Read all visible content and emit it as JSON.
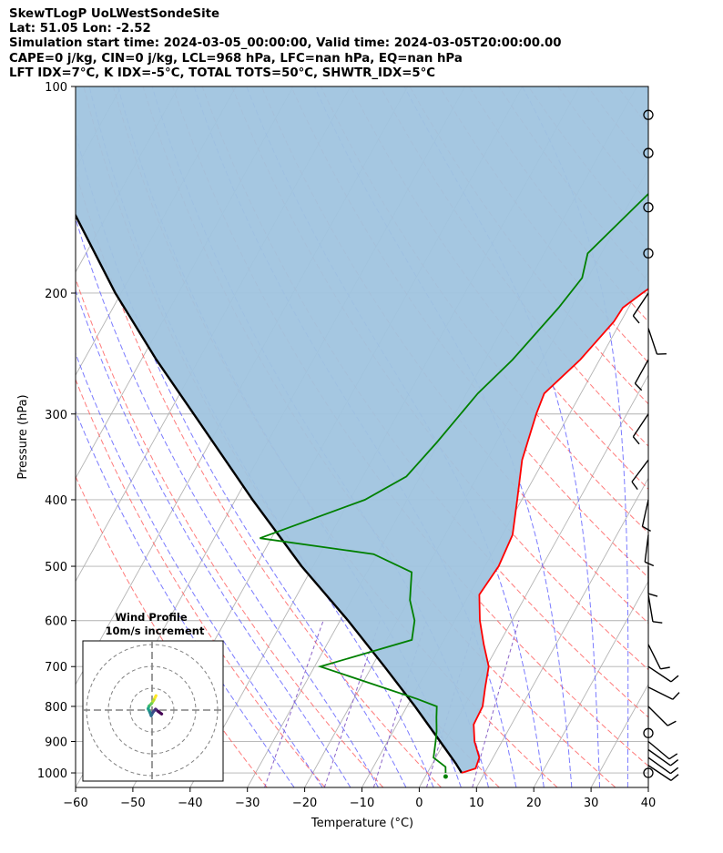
{
  "titles": [
    "SkewTLogP UoLWestSondeSite",
    "Lat: 51.05   Lon: -2.52",
    "Simulation start time: 2024-03-05_00:00:00, Valid time: 2024-03-05T20:00:00.00",
    "CAPE=0 j/kg, CIN=0 j/kg, LCL=968 hPa, LFC=nan hPa, EQ=nan hPa",
    "LFT IDX=7°C, K IDX=-5°C, TOTAL TOTS=50°C, SHWTR_IDX=5°C"
  ],
  "chart_data": {
    "type": "skew-t log-p",
    "xlabel": "Temperature (°C)",
    "ylabel": "Pressure (hPa)",
    "xlim": [
      -60,
      40
    ],
    "ylim_hpa": [
      1050,
      100
    ],
    "x_ticks": [
      -60,
      -50,
      -40,
      -30,
      -20,
      -10,
      0,
      10,
      20,
      30,
      40
    ],
    "x_tick_labels": [
      "−60",
      "−50",
      "−40",
      "−30",
      "−20",
      "−10",
      "0",
      "10",
      "20",
      "30",
      "40"
    ],
    "y_ticks": [
      100,
      200,
      300,
      400,
      500,
      600,
      700,
      800,
      900,
      1000
    ],
    "grid": true,
    "colors": {
      "temperature": "#ff0000",
      "dewpoint": "#008000",
      "parcel": "#000000",
      "cape_fill": "#a0c4df",
      "dry_adiabats": "#ff6464",
      "moist_adiabats": "#6464ff",
      "mixing_ratio": "#8c64c8",
      "isotherms": "#b4b4b4"
    },
    "temperature_profile": [
      [
        1000,
        6
      ],
      [
        985,
        8.0
      ],
      [
        950,
        7.6
      ],
      [
        900,
        5.2
      ],
      [
        850,
        3.4
      ],
      [
        800,
        3.2
      ],
      [
        750,
        1.8
      ],
      [
        700,
        0.4
      ],
      [
        650,
        -2.6
      ],
      [
        600,
        -5.6
      ],
      [
        550,
        -8.2
      ],
      [
        500,
        -7.6
      ],
      [
        450,
        -8.2
      ],
      [
        400,
        -10.8
      ],
      [
        350,
        -13.8
      ],
      [
        300,
        -15.8
      ],
      [
        280,
        -16.4
      ],
      [
        250,
        -13.4
      ],
      [
        220,
        -11.2
      ],
      [
        210,
        -11.0
      ],
      [
        200,
        -9.0
      ],
      [
        180,
        -4.2
      ],
      [
        165,
        -2.0
      ],
      [
        150,
        0.4
      ],
      [
        130,
        3.2
      ],
      [
        115,
        6.4
      ],
      [
        100,
        9.4
      ]
    ],
    "dewpoint_profile": [
      [
        1000,
        3.2
      ],
      [
        980,
        2.6
      ],
      [
        950,
        -0.4
      ],
      [
        900,
        -1.6
      ],
      [
        870,
        -2.4
      ],
      [
        830,
        -3.8
      ],
      [
        800,
        -4.8
      ],
      [
        780,
        -9.0
      ],
      [
        700,
        -29.0
      ],
      [
        640,
        -15.6
      ],
      [
        600,
        -17.0
      ],
      [
        560,
        -19.8
      ],
      [
        510,
        -22.2
      ],
      [
        480,
        -30.6
      ],
      [
        455,
        -52.0
      ],
      [
        400,
        -37.4
      ],
      [
        370,
        -32.4
      ],
      [
        330,
        -30.4
      ],
      [
        280,
        -28.0
      ],
      [
        250,
        -25.2
      ],
      [
        210,
        -22.2
      ],
      [
        190,
        -21.0
      ],
      [
        175,
        -22.4
      ],
      [
        140,
        -17.0
      ],
      [
        110,
        -11.0
      ],
      [
        100,
        -9.2
      ]
    ],
    "parcel_profile": [
      [
        1000,
        6
      ],
      [
        968,
        4.0
      ],
      [
        900,
        -0.8
      ],
      [
        800,
        -8.6
      ],
      [
        700,
        -17.8
      ],
      [
        600,
        -28.6
      ],
      [
        500,
        -42.0
      ],
      [
        400,
        -57.0
      ],
      [
        300,
        -75.6
      ],
      [
        250,
        -87.4
      ],
      [
        200,
        -101
      ],
      [
        150,
        -117
      ],
      [
        100,
        -140
      ]
    ],
    "wind_barbs": [
      {
        "p": 1000,
        "u": 0,
        "v": 0
      },
      {
        "p": 975,
        "u": -6,
        "v": 4
      },
      {
        "p": 950,
        "u": -7,
        "v": 5
      },
      {
        "p": 925,
        "u": -7,
        "v": 5
      },
      {
        "p": 900,
        "u": -6,
        "v": 5
      },
      {
        "p": 875,
        "u": 0,
        "v": 0
      },
      {
        "p": 800,
        "u": -4,
        "v": 4
      },
      {
        "p": 750,
        "u": -8,
        "v": 4
      },
      {
        "p": 700,
        "u": -6,
        "v": 4
      },
      {
        "p": 650,
        "u": -3,
        "v": 6
      },
      {
        "p": 550,
        "u": -1,
        "v": 6
      },
      {
        "p": 500,
        "u": 0,
        "v": 7
      },
      {
        "p": 450,
        "u": 1,
        "v": 8
      },
      {
        "p": 400,
        "u": 2,
        "v": 9
      },
      {
        "p": 350,
        "u": 6,
        "v": 8
      },
      {
        "p": 300,
        "u": 6,
        "v": 9
      },
      {
        "p": 250,
        "u": 5,
        "v": 9
      },
      {
        "p": 225,
        "u": -2,
        "v": 6
      },
      {
        "p": 200,
        "u": 6,
        "v": 9
      },
      {
        "p": 175,
        "u": 0,
        "v": 0
      },
      {
        "p": 150,
        "u": 0,
        "v": 0
      },
      {
        "p": 125,
        "u": 0,
        "v": 0
      },
      {
        "p": 110,
        "u": 0,
        "v": 0
      }
    ],
    "inset": {
      "title": "Wind Profile",
      "subtitle": "10m/s increment",
      "rings_ms": [
        10,
        20,
        30
      ],
      "hodograph": [
        [
          1.8,
          6.6
        ],
        [
          0.8,
          4.6
        ],
        [
          -0.2,
          3.0
        ],
        [
          -1.4,
          1.8
        ],
        [
          -1.8,
          0.6
        ],
        [
          -1.0,
          -1.0
        ],
        [
          -0.4,
          -2.6
        ],
        [
          0.4,
          -1.0
        ],
        [
          1.6,
          0.4
        ],
        [
          2.8,
          -0.6
        ],
        [
          4.4,
          -1.8
        ]
      ]
    }
  }
}
